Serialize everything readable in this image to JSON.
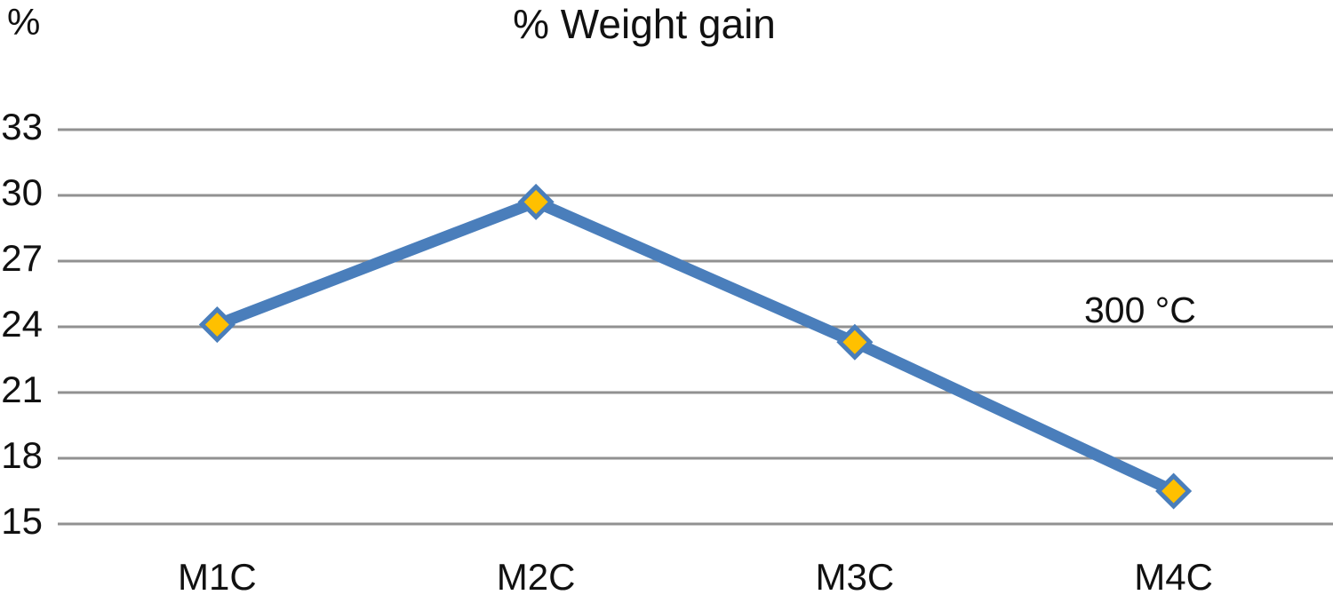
{
  "chart_data": {
    "type": "line",
    "title": "% Weight gain",
    "y_axis_unit": "%",
    "xlabel": "",
    "ylabel": "%",
    "categories": [
      "M1C",
      "M2C",
      "M3C",
      "M4C"
    ],
    "series": [
      {
        "name": "% Weight gain",
        "values": [
          24.1,
          29.7,
          23.3,
          16.5
        ]
      }
    ],
    "yticks": [
      33,
      30,
      27,
      24,
      21,
      18,
      15
    ],
    "ylim": [
      15,
      33
    ],
    "grid": true,
    "legend": false,
    "marker_shape": "diamond",
    "annotation": {
      "text": "300 °C",
      "position_hint": "above the 24 gridline, between M3C and M4C"
    },
    "colors": {
      "line": "#4a7ebb",
      "marker_fill": "#ffc000",
      "marker_border": "#4a7ebb",
      "gridline": "#919191",
      "text": "#111111",
      "background": "#ffffff"
    }
  }
}
